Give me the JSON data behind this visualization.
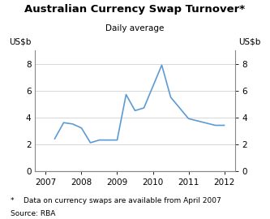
{
  "title": "Australian Currency Swap Turnover*",
  "subtitle": "Daily average",
  "ylabel_left": "US$b",
  "ylabel_right": "US$b",
  "footnote": "*    Data on currency swaps are available from April 2007",
  "source": "Source: RBA",
  "ylim": [
    0,
    9
  ],
  "yticks": [
    0,
    2,
    4,
    6,
    8
  ],
  "line_color": "#5b9bd5",
  "x_values": [
    2007.25,
    2007.5,
    2007.75,
    2008.0,
    2008.25,
    2008.5,
    2009.0,
    2009.25,
    2009.5,
    2009.75,
    2010.25,
    2010.5,
    2011.0,
    2011.75,
    2012.0
  ],
  "y_values": [
    2.4,
    3.6,
    3.5,
    3.2,
    2.1,
    2.3,
    2.3,
    5.7,
    4.5,
    4.7,
    7.9,
    5.5,
    3.9,
    3.4,
    3.4
  ],
  "xticks": [
    2007,
    2008,
    2009,
    2010,
    2011,
    2012
  ],
  "xlim": [
    2006.7,
    2012.3
  ],
  "background_color": "#ffffff",
  "grid_color": "#c8c8c8",
  "title_fontsize": 9.5,
  "subtitle_fontsize": 7.5,
  "tick_fontsize": 7.5,
  "footnote_fontsize": 6.5
}
